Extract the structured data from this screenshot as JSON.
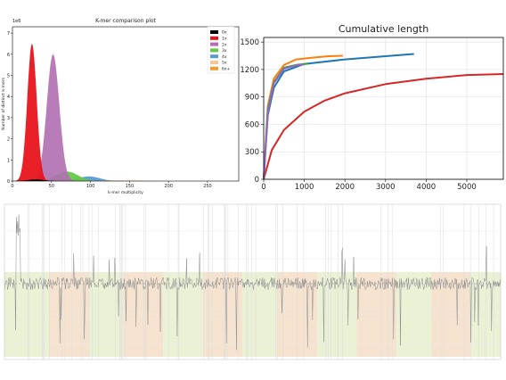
{
  "chart_data": [
    {
      "type": "area",
      "title": "K-mer comparison plot",
      "xlabel": "k-mer multiplicity",
      "ylabel": "Number of distinct k-mers",
      "y_scale_label": "1e6",
      "xlim": [
        0,
        290
      ],
      "ylim": [
        0,
        7.3
      ],
      "x_ticks": [
        "0",
        "50",
        "100",
        "150",
        "200",
        "250"
      ],
      "y_ticks": [
        "0",
        "1",
        "2",
        "3",
        "4",
        "5",
        "6",
        "7"
      ],
      "legend": {
        "position": "top-right",
        "entries": [
          "0x",
          "1x",
          "2x",
          "3x",
          "4x",
          "5x",
          "6x+"
        ]
      },
      "series": [
        {
          "name": "0x",
          "color": "#000000",
          "peak_x": 30,
          "peak_y": 0.08
        },
        {
          "name": "1x",
          "color": "#e8141c",
          "peak_x": 25,
          "peak_y": 6.5
        },
        {
          "name": "2x",
          "color": "#b06fb0",
          "peak_x": 52,
          "peak_y": 6.0
        },
        {
          "name": "3x",
          "color": "#64c84a",
          "peak_x": 70,
          "peak_y": 0.45
        },
        {
          "name": "4x",
          "color": "#5b9bd5",
          "peak_x": 98,
          "peak_y": 0.22
        },
        {
          "name": "5x",
          "color": "#f5c89a",
          "peak_x": 125,
          "peak_y": 0.03
        },
        {
          "name": "6x+",
          "color": "#f39c2c",
          "peak_x": 150,
          "peak_y": 0.02
        }
      ]
    },
    {
      "type": "line",
      "title": "Cumulative length",
      "xlim": [
        0,
        5900
      ],
      "ylim": [
        0,
        1550
      ],
      "x_ticks": [
        0,
        1000,
        2000,
        3000,
        4000,
        5000
      ],
      "y_ticks": [
        0,
        300,
        600,
        900,
        1200,
        1500
      ],
      "grid": true,
      "series": [
        {
          "color": "#d62728",
          "x": [
            0,
            200,
            500,
            1000,
            1500,
            2000,
            3000,
            4000,
            5000,
            5900
          ],
          "y": [
            0,
            320,
            540,
            740,
            860,
            940,
            1040,
            1100,
            1140,
            1150
          ]
        },
        {
          "color": "#1f77b4",
          "x": [
            0,
            100,
            250,
            500,
            1000,
            2000,
            3000,
            3700
          ],
          "y": [
            0,
            700,
            1000,
            1180,
            1260,
            1310,
            1345,
            1370
          ]
        },
        {
          "color": "#ff7f0e",
          "x": [
            0,
            100,
            250,
            500,
            800,
            1200,
            1600,
            1950
          ],
          "y": [
            0,
            800,
            1100,
            1250,
            1310,
            1330,
            1345,
            1350
          ]
        },
        {
          "color": "#2ca02c",
          "x": [
            0,
            100,
            250,
            500,
            800,
            1100
          ],
          "y": [
            0,
            760,
            1060,
            1220,
            1250,
            1265
          ]
        },
        {
          "color": "#9467bd",
          "x": [
            0,
            100,
            250,
            500,
            800,
            1000
          ],
          "y": [
            0,
            740,
            1050,
            1210,
            1245,
            1255
          ]
        }
      ]
    },
    {
      "type": "line",
      "title": "",
      "description_levels": {
        "base_level": 0.55,
        "segments": [
          {
            "x0": 0.0,
            "x1": 0.09,
            "fill": "#eaf1d5"
          },
          {
            "x0": 0.09,
            "x1": 0.17,
            "fill": "#f6e3cf"
          },
          {
            "x0": 0.17,
            "x1": 0.24,
            "fill": "#eaf1d5"
          },
          {
            "x0": 0.24,
            "x1": 0.32,
            "fill": "#f6e3cf"
          },
          {
            "x0": 0.32,
            "x1": 0.4,
            "fill": "#eaf1d5"
          },
          {
            "x0": 0.4,
            "x1": 0.48,
            "fill": "#f6e3cf"
          },
          {
            "x0": 0.48,
            "x1": 0.55,
            "fill": "#eaf1d5"
          },
          {
            "x0": 0.55,
            "x1": 0.63,
            "fill": "#f6e3cf"
          },
          {
            "x0": 0.63,
            "x1": 0.71,
            "fill": "#eaf1d5"
          },
          {
            "x0": 0.71,
            "x1": 0.79,
            "fill": "#f6e3cf"
          },
          {
            "x0": 0.79,
            "x1": 0.86,
            "fill": "#eaf1d5"
          },
          {
            "x0": 0.86,
            "x1": 0.94,
            "fill": "#f6e3cf"
          },
          {
            "x0": 0.94,
            "x1": 1.0,
            "fill": "#eaf1d5"
          }
        ]
      }
    }
  ]
}
